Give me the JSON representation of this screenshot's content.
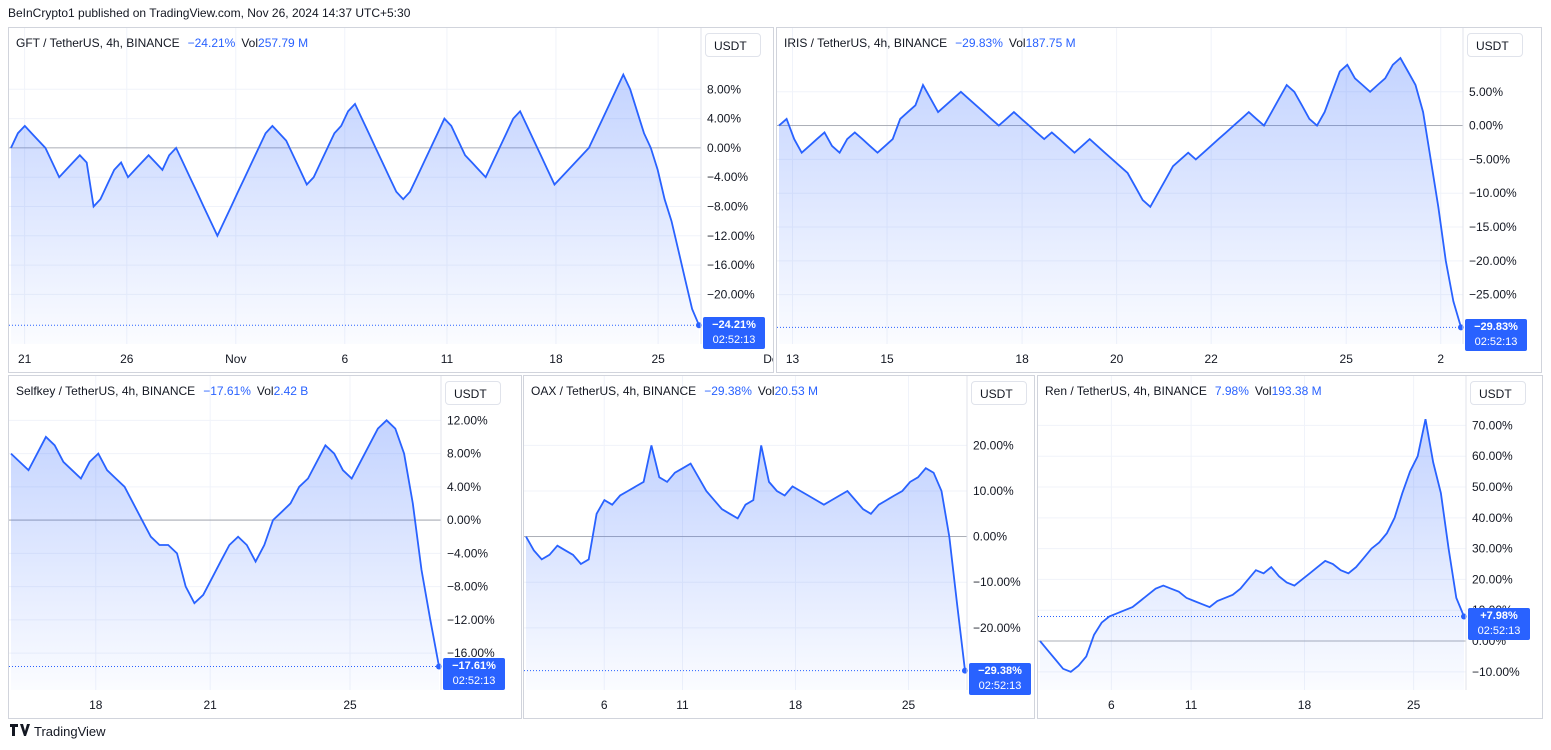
{
  "publisher": "BeInCrypto1 published on TradingView.com, Nov 26, 2024 14:37 UTC+5:30",
  "footer": {
    "logo_icon": "tradingview-logo-icon",
    "label": "TradingView"
  },
  "colors": {
    "line": "#2962ff",
    "fill_top": "rgba(41,98,255,0.28)",
    "fill_bottom": "rgba(41,98,255,0.02)",
    "tag": "#2962ff"
  },
  "chart_data": [
    {
      "type": "area",
      "symbol": "GFT / TetherUS, 4h, BINANCE",
      "change": "−24.21%",
      "vol_label": "Vol",
      "volume": "257.79 M",
      "unit": "USDT",
      "last_value_label": "−24.21%",
      "countdown": "02:52:13",
      "ylim": [
        -26.5,
        12
      ],
      "y_ticks": [
        8,
        4,
        0,
        -4,
        -8,
        -12,
        -16,
        -20
      ],
      "y_tick_labels": [
        "8.00%",
        "4.00%",
        "0.00%",
        "−4.00%",
        "−8.00%",
        "−12.00%",
        "−16.00%",
        "−20.00%"
      ],
      "x_range": [
        0,
        101
      ],
      "x_ticks": [
        {
          "x": 2,
          "label": "21"
        },
        {
          "x": 17,
          "label": "26"
        },
        {
          "x": 33,
          "label": "Nov"
        },
        {
          "x": 49,
          "label": "6"
        },
        {
          "x": 64,
          "label": "11"
        },
        {
          "x": 80,
          "label": "18"
        },
        {
          "x": 95,
          "label": "25"
        },
        {
          "x": 112,
          "label": "Dec"
        }
      ],
      "values": [
        0,
        2,
        3,
        2,
        1,
        0,
        -2,
        -4,
        -3,
        -2,
        -1,
        -2,
        -8,
        -7,
        -5,
        -3,
        -2,
        -4,
        -3,
        -2,
        -1,
        -2,
        -3,
        -1,
        0,
        -2,
        -4,
        -6,
        -8,
        -10,
        -12,
        -10,
        -8,
        -6,
        -4,
        -2,
        0,
        2,
        3,
        2,
        1,
        -1,
        -3,
        -5,
        -4,
        -2,
        0,
        2,
        3,
        5,
        6,
        4,
        2,
        0,
        -2,
        -4,
        -6,
        -7,
        -6,
        -4,
        -2,
        0,
        2,
        4,
        3,
        1,
        -1,
        -2,
        -3,
        -4,
        -2,
        0,
        2,
        4,
        5,
        3,
        1,
        -1,
        -3,
        -5,
        -4,
        -3,
        -2,
        -1,
        0,
        2,
        4,
        6,
        8,
        10,
        8,
        5,
        2,
        0,
        -3,
        -7,
        -10,
        -14,
        -18,
        -22,
        -24.21
      ],
      "series": [
        {
          "name": "GFT",
          "values": "see values"
        }
      ]
    },
    {
      "type": "area",
      "symbol": "IRIS / TetherUS, 4h, BINANCE",
      "change": "−29.83%",
      "vol_label": "Vol",
      "volume": "187.75 M",
      "unit": "USDT",
      "last_value_label": "−29.83%",
      "countdown": "02:52:13",
      "ylim": [
        -32,
        10
      ],
      "y_ticks": [
        5,
        0,
        -5,
        -10,
        -15,
        -20,
        -25
      ],
      "y_tick_labels": [
        "5.00%",
        "0.00%",
        "−5.00%",
        "−10.00%",
        "−15.00%",
        "−20.00%",
        "−25.00%"
      ],
      "x_range": [
        0,
        101
      ],
      "x_ticks": [
        {
          "x": 2,
          "label": "13"
        },
        {
          "x": 16,
          "label": "15"
        },
        {
          "x": 36,
          "label": "18"
        },
        {
          "x": 50,
          "label": "20"
        },
        {
          "x": 64,
          "label": "22"
        },
        {
          "x": 84,
          "label": "25"
        },
        {
          "x": 98,
          "label": "2"
        }
      ],
      "values": [
        0,
        1,
        -2,
        -4,
        -3,
        -2,
        -1,
        -3,
        -4,
        -2,
        -1,
        -2,
        -3,
        -4,
        -3,
        -2,
        1,
        2,
        3,
        6,
        4,
        2,
        3,
        4,
        5,
        4,
        3,
        2,
        1,
        0,
        1,
        2,
        1,
        0,
        -1,
        -2,
        -1,
        -2,
        -3,
        -4,
        -3,
        -2,
        -3,
        -4,
        -5,
        -6,
        -7,
        -9,
        -11,
        -12,
        -10,
        -8,
        -6,
        -5,
        -4,
        -5,
        -4,
        -3,
        -2,
        -1,
        0,
        1,
        2,
        1,
        0,
        2,
        4,
        6,
        5,
        3,
        1,
        0,
        2,
        5,
        8,
        9,
        7,
        6,
        5,
        6,
        7,
        9,
        10,
        8,
        6,
        2,
        -5,
        -12,
        -20,
        -26,
        -29.83
      ],
      "series": [
        {
          "name": "IRIS",
          "values": "see values"
        }
      ]
    },
    {
      "type": "area",
      "symbol": "Selfkey / TetherUS, 4h, BINANCE",
      "change": "−17.61%",
      "vol_label": "Vol",
      "volume": "2.42 B",
      "unit": "USDT",
      "last_value_label": "−17.61%",
      "countdown": "02:52:13",
      "ylim": [
        -19,
        13
      ],
      "y_ticks": [
        12,
        8,
        4,
        0,
        -4,
        -8,
        -12,
        -16
      ],
      "y_tick_labels": [
        "12.00%",
        "8.00%",
        "4.00%",
        "0.00%",
        "−4.00%",
        "−8.00%",
        "−12.00%",
        "−16.00%"
      ],
      "x_range": [
        0,
        101
      ],
      "x_ticks": [
        {
          "x": 20,
          "label": "18"
        },
        {
          "x": 47,
          "label": "21"
        },
        {
          "x": 80,
          "label": "25"
        }
      ],
      "values": [
        8,
        7,
        6,
        8,
        10,
        9,
        7,
        6,
        5,
        7,
        8,
        6,
        5,
        4,
        2,
        0,
        -2,
        -3,
        -3,
        -4,
        -8,
        -10,
        -9,
        -7,
        -5,
        -3,
        -2,
        -3,
        -5,
        -3,
        0,
        1,
        2,
        4,
        5,
        7,
        9,
        8,
        6,
        5,
        7,
        9,
        11,
        12,
        11,
        8,
        2,
        -6,
        -12,
        -17.61
      ],
      "series": [
        {
          "name": "Selfkey",
          "values": "see values"
        }
      ]
    },
    {
      "type": "area",
      "symbol": "OAX / TetherUS, 4h, BINANCE",
      "change": "−29.38%",
      "vol_label": "Vol",
      "volume": "20.53 M",
      "unit": "USDT",
      "last_value_label": "−29.38%",
      "countdown": "02:52:13",
      "ylim": [
        -31,
        26
      ],
      "y_ticks": [
        20,
        10,
        0,
        -10,
        -20
      ],
      "y_tick_labels": [
        "20.00%",
        "10.00%",
        "0.00%",
        "−10.00%",
        "−20.00%"
      ],
      "x_range": [
        0,
        101
      ],
      "x_ticks": [
        {
          "x": 18,
          "label": "6"
        },
        {
          "x": 36,
          "label": "11"
        },
        {
          "x": 62,
          "label": "18"
        },
        {
          "x": 88,
          "label": "25"
        }
      ],
      "values": [
        0,
        -3,
        -5,
        -4,
        -2,
        -3,
        -4,
        -6,
        -5,
        5,
        8,
        7,
        9,
        10,
        11,
        12,
        20,
        13,
        12,
        14,
        15,
        16,
        13,
        10,
        8,
        6,
        5,
        4,
        7,
        8,
        20,
        12,
        10,
        9,
        11,
        10,
        9,
        8,
        7,
        8,
        9,
        10,
        8,
        6,
        5,
        7,
        8,
        9,
        10,
        12,
        13,
        15,
        14,
        10,
        0,
        -15,
        -29.38
      ],
      "series": [
        {
          "name": "OAX",
          "values": "see values"
        }
      ]
    },
    {
      "type": "area",
      "symbol": "Ren / TetherUS, 4h, BINANCE",
      "change": "7.98%",
      "vol_label": "Vol",
      "volume": "193.38 M",
      "unit": "USDT",
      "last_value_label": "+7.98%",
      "countdown": "02:52:13",
      "ylim": [
        -12,
        75
      ],
      "y_ticks": [
        70,
        60,
        50,
        40,
        30,
        20,
        10,
        0,
        -10
      ],
      "y_tick_labels": [
        "70.00%",
        "60.00%",
        "50.00%",
        "40.00%",
        "30.00%",
        "20.00%",
        "10.00%",
        "0.00%",
        "−10.00%"
      ],
      "x_range": [
        0,
        101
      ],
      "x_ticks": [
        {
          "x": 17,
          "label": "6"
        },
        {
          "x": 36,
          "label": "11"
        },
        {
          "x": 63,
          "label": "18"
        },
        {
          "x": 89,
          "label": "25"
        }
      ],
      "values": [
        0,
        -3,
        -6,
        -9,
        -10,
        -8,
        -5,
        2,
        6,
        8,
        9,
        10,
        11,
        13,
        15,
        17,
        18,
        17,
        16,
        14,
        13,
        12,
        11,
        13,
        14,
        15,
        17,
        20,
        23,
        22,
        24,
        21,
        19,
        18,
        20,
        22,
        24,
        26,
        25,
        23,
        22,
        24,
        27,
        30,
        32,
        35,
        40,
        48,
        55,
        60,
        72,
        58,
        48,
        30,
        14,
        7.98
      ],
      "series": [
        {
          "name": "Ren",
          "values": "see values"
        }
      ]
    }
  ]
}
